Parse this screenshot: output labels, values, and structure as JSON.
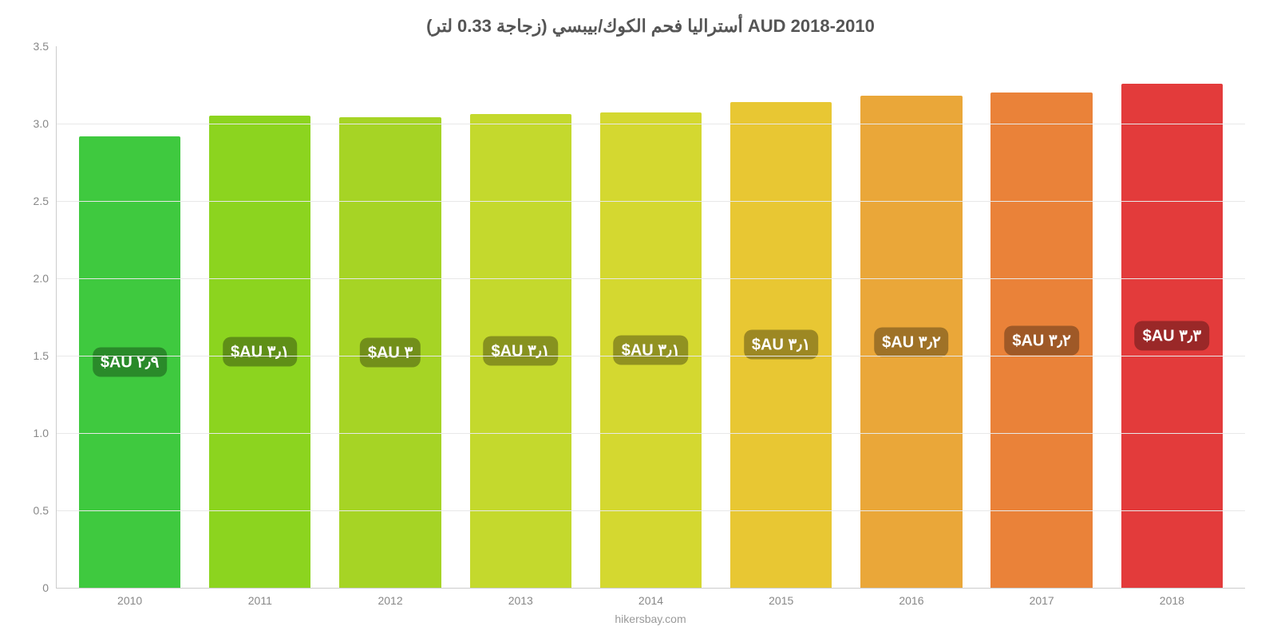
{
  "chart": {
    "type": "bar",
    "title": "أستراليا فحم الكوك/بيبسي (زجاجة 0.33 لتر) AUD 2018-2010",
    "title_fontsize": 22,
    "title_color": "#555555",
    "background_color": "#ffffff",
    "grid_color": "#e8e8e8",
    "axis_color": "#cccccc",
    "tick_label_color": "#888888",
    "tick_fontsize": 14,
    "ylim": [
      0,
      3.5
    ],
    "yticks": [
      0,
      0.5,
      1.0,
      1.5,
      2.0,
      2.5,
      3.0,
      3.5
    ],
    "ytick_labels": [
      "0",
      "0.5",
      "1.0",
      "1.5",
      "2.0",
      "2.5",
      "3.0",
      "3.5"
    ],
    "categories": [
      "2010",
      "2011",
      "2012",
      "2013",
      "2014",
      "2015",
      "2016",
      "2017",
      "2018"
    ],
    "values": [
      2.92,
      3.05,
      3.04,
      3.06,
      3.07,
      3.14,
      3.18,
      3.2,
      3.26
    ],
    "bar_colors": [
      "#3fc93f",
      "#8cd41f",
      "#a6d425",
      "#c4d92d",
      "#d4d830",
      "#e8c733",
      "#eaa739",
      "#ea8239",
      "#e33b3b"
    ],
    "bar_label_bg": [
      "#2a8a2a",
      "#5f8f17",
      "#728f1a",
      "#87921f",
      "#919221",
      "#9d8823",
      "#9f7227",
      "#9f5927",
      "#9a2828"
    ],
    "bar_labels": [
      "٢٫٩ AU$",
      "٣٫١ AU$",
      "٣ AU$",
      "٣٫١ AU$",
      "٣٫١ AU$",
      "٣٫١ AU$",
      "٣٫٢ AU$",
      "٣٫٢ AU$",
      "٣٫٣ AU$"
    ],
    "bar_label_fontsize": 20,
    "bar_width": 0.78,
    "attribution": "hikersbay.com",
    "attribution_color": "#999999"
  }
}
